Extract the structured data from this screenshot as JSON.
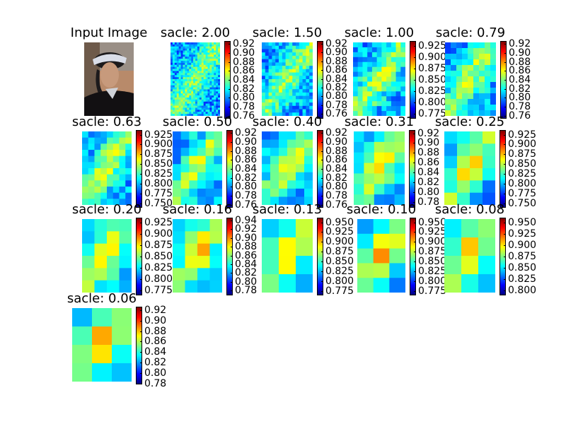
{
  "chart_data": {
    "type": "heatmap",
    "input_panel": {
      "title": "Input Image"
    },
    "colormap": "jet",
    "panels": [
      {
        "title": "sacle: 2.00",
        "clim": [
          0.755,
          0.925
        ],
        "ticks": [
          "0.92",
          "0.90",
          "0.88",
          "0.86",
          "0.84",
          "0.82",
          "0.80",
          "0.78",
          "0.76"
        ]
      },
      {
        "title": "sacle: 1.50",
        "clim": [
          0.75,
          0.925
        ],
        "ticks": [
          "0.92",
          "0.90",
          "0.88",
          "0.86",
          "0.84",
          "0.82",
          "0.80",
          "0.78",
          "0.76"
        ]
      },
      {
        "title": "sacle: 1.00",
        "clim": [
          0.765,
          0.935
        ],
        "ticks": [
          "0.925",
          "0.900",
          "0.875",
          "0.850",
          "0.825",
          "0.800",
          "0.775"
        ]
      },
      {
        "title": "sacle: 0.79",
        "clim": [
          0.755,
          0.925
        ],
        "ticks": [
          "0.92",
          "0.90",
          "0.88",
          "0.86",
          "0.84",
          "0.82",
          "0.80",
          "0.78",
          "0.76"
        ]
      },
      {
        "title": "sacle: 0.63",
        "clim": [
          0.74,
          0.935
        ],
        "ticks": [
          "0.925",
          "0.900",
          "0.875",
          "0.850",
          "0.825",
          "0.800",
          "0.775",
          "0.750"
        ]
      },
      {
        "title": "sacle: 0.50",
        "clim": [
          0.755,
          0.925
        ],
        "ticks": [
          "0.92",
          "0.90",
          "0.88",
          "0.86",
          "0.84",
          "0.82",
          "0.80",
          "0.78",
          "0.76"
        ]
      },
      {
        "title": "sacle: 0.40",
        "clim": [
          0.755,
          0.925
        ],
        "ticks": [
          "0.92",
          "0.90",
          "0.88",
          "0.86",
          "0.84",
          "0.82",
          "0.80",
          "0.78",
          "0.76"
        ]
      },
      {
        "title": "sacle: 0.31",
        "clim": [
          0.77,
          0.925
        ],
        "ticks": [
          "0.92",
          "0.90",
          "0.88",
          "0.86",
          "0.84",
          "0.82",
          "0.80",
          "0.78"
        ]
      },
      {
        "title": "sacle: 0.25",
        "clim": [
          0.74,
          0.935
        ],
        "ticks": [
          "0.925",
          "0.900",
          "0.875",
          "0.850",
          "0.825",
          "0.800",
          "0.775",
          "0.750"
        ]
      },
      {
        "title": "sacle: 0.20",
        "clim": [
          0.765,
          0.935
        ],
        "ticks": [
          "0.925",
          "0.900",
          "0.875",
          "0.850",
          "0.825",
          "0.800",
          "0.775"
        ]
      },
      {
        "title": "sacle: 0.16",
        "clim": [
          0.77,
          0.945
        ],
        "ticks": [
          "0.94",
          "0.92",
          "0.90",
          "0.88",
          "0.86",
          "0.84",
          "0.82",
          "0.80",
          "0.78"
        ]
      },
      {
        "title": "sacle: 0.13",
        "clim": [
          0.765,
          0.96
        ],
        "ticks": [
          "0.950",
          "0.925",
          "0.900",
          "0.875",
          "0.850",
          "0.825",
          "0.800",
          "0.775"
        ]
      },
      {
        "title": "sacle: 0.10",
        "clim": [
          0.765,
          0.96
        ],
        "ticks": [
          "0.950",
          "0.925",
          "0.900",
          "0.875",
          "0.850",
          "0.825",
          "0.800",
          "0.775"
        ]
      },
      {
        "title": "sacle: 0.08",
        "clim": [
          0.79,
          0.96
        ],
        "ticks": [
          "0.950",
          "0.925",
          "0.900",
          "0.875",
          "0.850",
          "0.825",
          "0.800"
        ]
      },
      {
        "title": "sacle: 0.06",
        "clim": [
          0.78,
          0.925
        ],
        "ticks": [
          "0.92",
          "0.90",
          "0.88",
          "0.86",
          "0.84",
          "0.82",
          "0.80",
          "0.78"
        ]
      }
    ]
  }
}
